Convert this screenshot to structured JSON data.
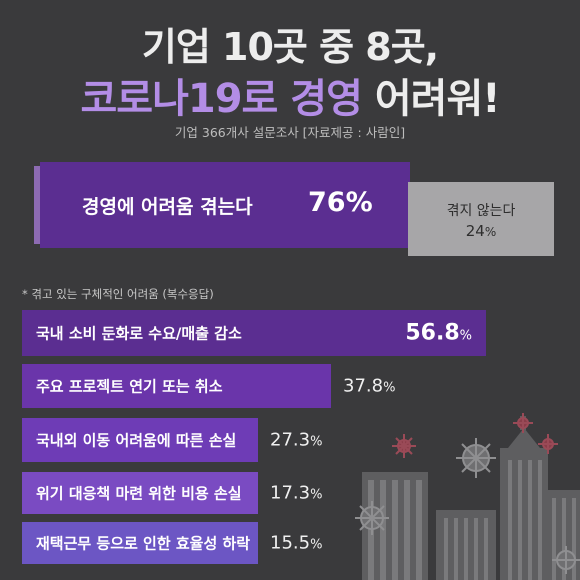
{
  "header": {
    "title_line1": "기업 10곳 중 8곳,",
    "title_line2_part1": "코로나19로",
    "title_line2_part2": "경영",
    "title_line2_part3": "어려워!",
    "subtitle": "기업 366개사 설문조사 [자료제공 : 사람인]"
  },
  "summary": {
    "main_label": "경영에 어려움 겪는다",
    "main_value": "76%",
    "minor_label": "겪지 않는다",
    "minor_value": "24",
    "minor_unit": "%"
  },
  "note": "* 겪고 있는 구체적인 어려움 (복수응답)",
  "chart_data": {
    "type": "bar",
    "orientation": "horizontal",
    "categories": [
      "국내 소비 둔화로 수요/매출 감소",
      "주요 프로젝트 연기 또는 취소",
      "국내외 이동 어려움에 따른 손실",
      "위기 대응책 마련 위한 비용 손실",
      "재택근무 등으로 인한 효율성 하락"
    ],
    "values": [
      56.8,
      37.8,
      27.3,
      17.3,
      15.5
    ],
    "value_labels": [
      "56.8",
      "37.8",
      "27.3",
      "17.3",
      "15.5"
    ],
    "unit": "%",
    "colors": [
      "#5b2e91",
      "#6a35aa",
      "#6e3cb6",
      "#7a4bc2",
      "#6c56c4"
    ]
  },
  "colors": {
    "background": "#3a3a3c",
    "accent_purple": "#b38de6"
  }
}
